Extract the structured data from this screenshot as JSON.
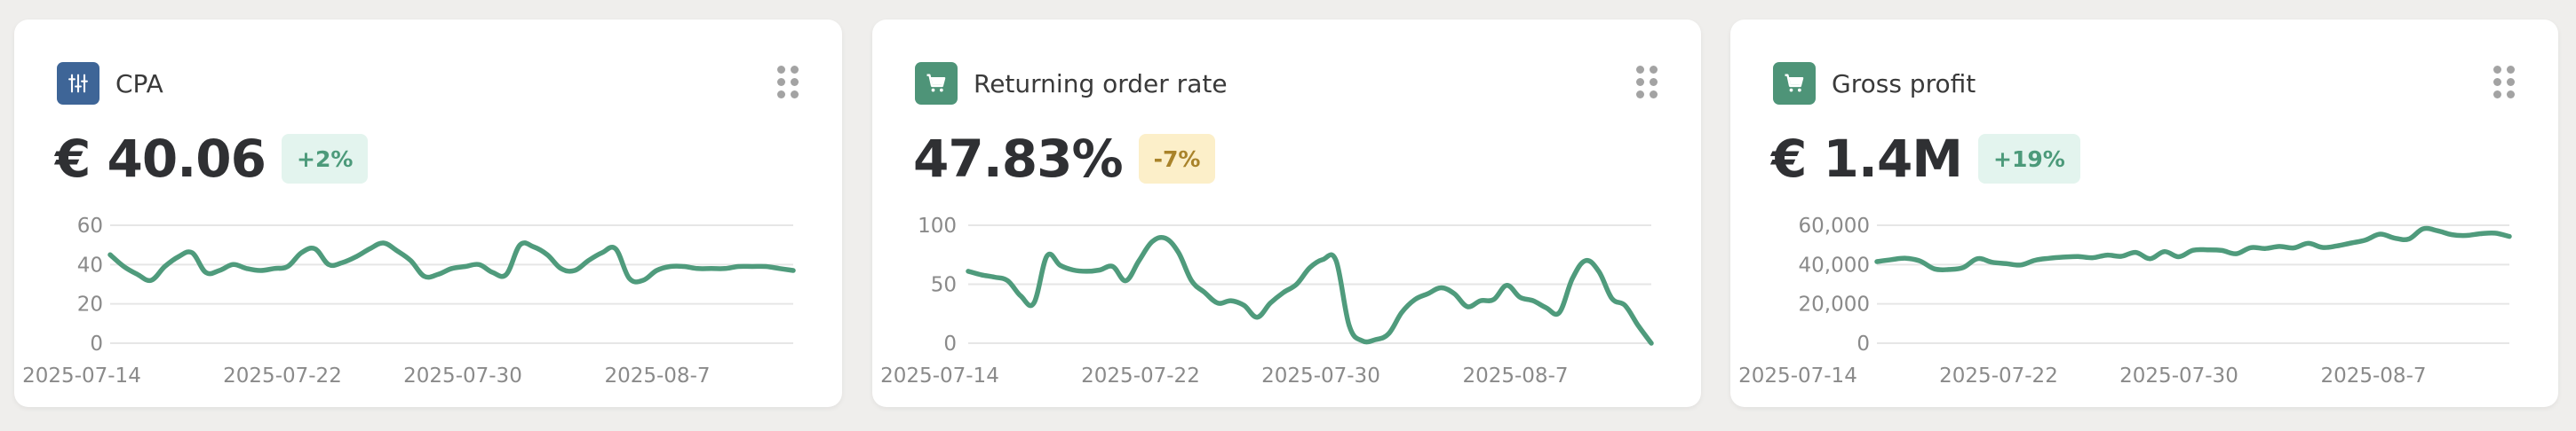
{
  "accent_color": "#4f9b7c",
  "cards": [
    {
      "title": "CPA",
      "icon": "sliders-icon",
      "icon_bg": "#3e6597",
      "value": "€ 40.06",
      "change": "+2%",
      "change_type": "positive",
      "chart_data": {
        "type": "line",
        "x_tick_labels": [
          "2025-07-14",
          "2025-07-22",
          "2025-07-30",
          "2025-08-7"
        ],
        "y_ticks": [
          "0",
          "20",
          "40",
          "60"
        ],
        "ylim": [
          0,
          60
        ],
        "grid": true,
        "values": [
          45,
          39,
          35,
          32,
          39,
          44,
          46,
          36,
          37,
          40,
          38,
          37,
          38,
          39,
          46,
          48,
          40,
          41,
          44,
          48,
          51,
          47,
          42,
          34,
          35,
          38,
          39,
          40,
          36,
          35,
          50,
          49,
          45,
          38,
          37,
          42,
          46,
          48,
          33,
          32,
          37,
          39,
          39,
          38,
          38,
          38,
          39,
          39,
          39,
          38,
          37
        ]
      }
    },
    {
      "title": "Returning order rate",
      "icon": "cart-icon",
      "icon_bg": "#4e9478",
      "value": "47.83%",
      "change": "-7%",
      "change_type": "negative",
      "chart_data": {
        "type": "line",
        "x_tick_labels": [
          "2025-07-14",
          "2025-07-22",
          "2025-07-30",
          "2025-08-7"
        ],
        "y_ticks": [
          "0",
          "50",
          "100"
        ],
        "ylim": [
          0,
          100
        ],
        "grid": true,
        "values": [
          61,
          58,
          56,
          53,
          40,
          34,
          74,
          66,
          62,
          61,
          62,
          65,
          53,
          70,
          86,
          89,
          77,
          53,
          43,
          34,
          36,
          32,
          22,
          34,
          43,
          50,
          64,
          71,
          70,
          15,
          2,
          3,
          8,
          26,
          37,
          42,
          47,
          42,
          31,
          36,
          37,
          49,
          39,
          36,
          30,
          26,
          55,
          70,
          61,
          38,
          32,
          15,
          0
        ]
      }
    },
    {
      "title": "Gross profit",
      "icon": "cart-icon",
      "icon_bg": "#4e9478",
      "value": "€ 1.4M",
      "change": "+19%",
      "change_type": "positive",
      "chart_data": {
        "type": "line",
        "x_tick_labels": [
          "2025-07-14",
          "2025-07-22",
          "2025-07-30",
          "2025-08-7"
        ],
        "y_ticks": [
          "0",
          "20,000",
          "40,000",
          "60,000"
        ],
        "ylim": [
          0,
          60000
        ],
        "grid": true,
        "values": [
          41500,
          42500,
          43200,
          41800,
          37800,
          37500,
          38500,
          43000,
          41200,
          40500,
          39800,
          42200,
          43200,
          43800,
          44100,
          43500,
          44800,
          44200,
          46200,
          43000,
          46600,
          44000,
          47300,
          47500,
          47200,
          45500,
          48600,
          48200,
          49200,
          48500,
          50800,
          48700,
          49500,
          51000,
          52500,
          55500,
          53500,
          53000,
          58200,
          57200,
          55200,
          54800,
          55700,
          56000,
          54300
        ]
      }
    }
  ]
}
